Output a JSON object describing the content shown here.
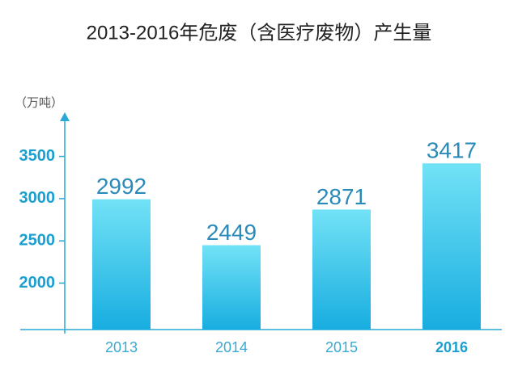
{
  "chart_data": {
    "type": "bar",
    "title": "2013-2016年危废（含医疗废物）产生量",
    "y_label": "（万吨）",
    "categories": [
      "2013",
      "2014",
      "2015",
      "2016"
    ],
    "values": [
      2992,
      2449,
      2871,
      3417
    ],
    "ylim": [
      1450,
      4000
    ],
    "yticks": [
      2000,
      2500,
      3000,
      3500
    ],
    "color": "#1ab0e0",
    "highlight_category_index": 3
  }
}
